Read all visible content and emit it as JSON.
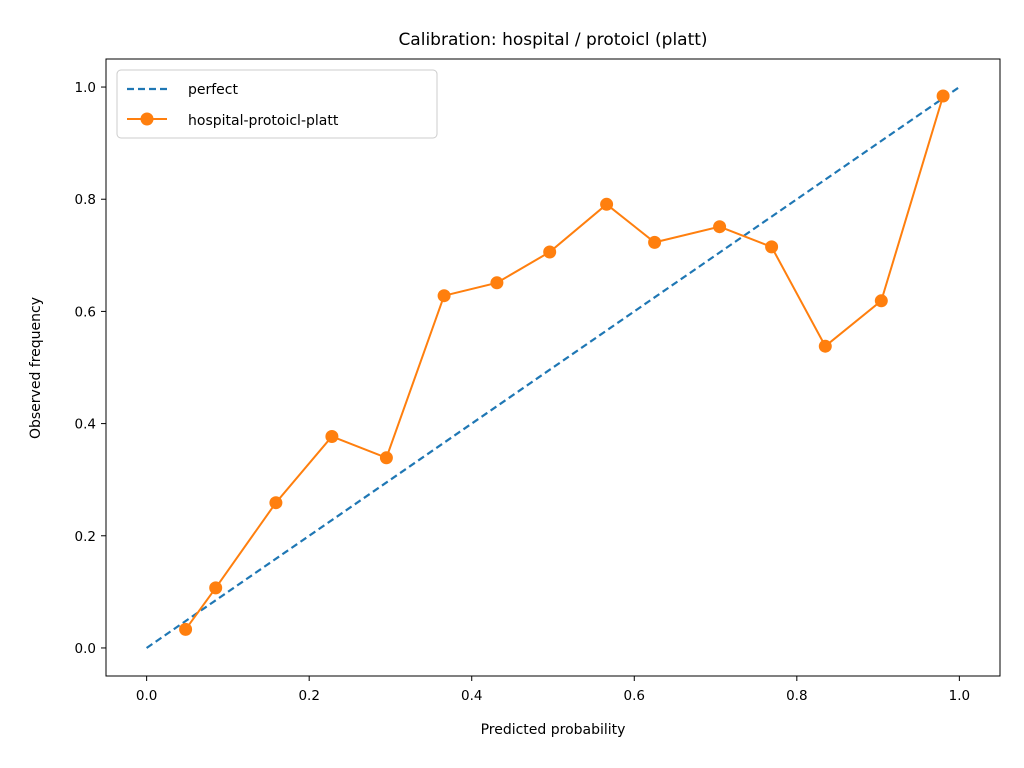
{
  "chart_data": {
    "type": "line",
    "title": "Calibration: hospital / protoicl (platt)",
    "xlabel": "Predicted probability",
    "ylabel": "Observed frequency",
    "xlim": [
      -0.05,
      1.05
    ],
    "ylim": [
      -0.05,
      1.05
    ],
    "xticks": [
      0.0,
      0.2,
      0.4,
      0.6,
      0.8,
      1.0
    ],
    "yticks": [
      0.0,
      0.2,
      0.4,
      0.6,
      0.8,
      1.0
    ],
    "xtick_labels": [
      "0.0",
      "0.2",
      "0.4",
      "0.6",
      "0.8",
      "1.0"
    ],
    "ytick_labels": [
      "0.0",
      "0.2",
      "0.4",
      "0.6",
      "0.8",
      "1.0"
    ],
    "grid": false,
    "legend_position": "upper-left",
    "series": [
      {
        "name": "perfect",
        "style": "dashed",
        "color": "#1f77b4",
        "markers": false,
        "x": [
          0.0,
          1.0
        ],
        "y": [
          0.0,
          1.0
        ]
      },
      {
        "name": "hospital-protoicl-platt",
        "style": "solid",
        "color": "#ff7f0e",
        "markers": true,
        "x": [
          0.048,
          0.085,
          0.159,
          0.228,
          0.295,
          0.366,
          0.431,
          0.496,
          0.566,
          0.625,
          0.705,
          0.769,
          0.835,
          0.904,
          0.98
        ],
        "y": [
          0.033,
          0.107,
          0.259,
          0.377,
          0.339,
          0.628,
          0.651,
          0.706,
          0.791,
          0.723,
          0.751,
          0.715,
          0.538,
          0.619,
          0.984
        ]
      }
    ]
  }
}
